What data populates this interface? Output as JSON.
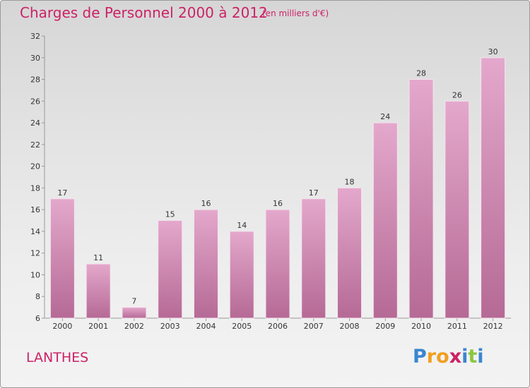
{
  "chart_data": {
    "type": "bar",
    "title": "Charges de Personnel 2000 à 2012",
    "subtitle": "(en milliers d'€)",
    "categories": [
      "2000",
      "2001",
      "2002",
      "2003",
      "2004",
      "2005",
      "2006",
      "2007",
      "2008",
      "2009",
      "2010",
      "2011",
      "2012"
    ],
    "values": [
      17,
      11,
      7,
      15,
      16,
      14,
      16,
      17,
      18,
      24,
      28,
      26,
      30
    ],
    "ylim": [
      6,
      32
    ],
    "yticks": [
      6,
      8,
      10,
      12,
      14,
      16,
      18,
      20,
      22,
      24,
      26,
      28,
      30,
      32
    ],
    "data_labels": [
      "17",
      "11",
      "7",
      "15",
      "16",
      "14",
      "16",
      "17",
      "18",
      "24",
      "28",
      "26",
      "30"
    ],
    "xlabel": "",
    "ylabel": "",
    "grid": false,
    "bar_color": "#d898bd",
    "axis_color": "#999999"
  },
  "header": {
    "title": "Charges de Personnel 2000 à 2012",
    "subtitle": "(en milliers d'€)"
  },
  "footer": {
    "commune": "LANTHES",
    "logo_letters": [
      {
        "ch": "P",
        "color": "#3a86d0"
      },
      {
        "ch": "r",
        "color": "#f0a020"
      },
      {
        "ch": "o",
        "color": "#f0a020"
      },
      {
        "ch": "x",
        "color": "#cc2266"
      },
      {
        "ch": "i",
        "color": "#3a86d0"
      },
      {
        "ch": "t",
        "color": "#8cc63f"
      },
      {
        "ch": "i",
        "color": "#3a86d0"
      }
    ]
  },
  "colors": {
    "accent": "#cc2266"
  }
}
